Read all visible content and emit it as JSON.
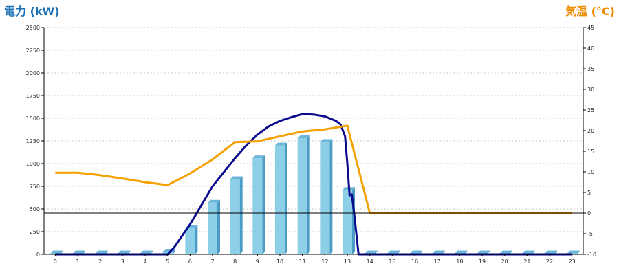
{
  "chart_data": {
    "type": "bar+line",
    "left_axis_label": "電力 (kW)",
    "right_axis_label": "気温 (°C)",
    "x": [
      0,
      1,
      2,
      3,
      4,
      5,
      6,
      7,
      8,
      9,
      10,
      11,
      12,
      13,
      14,
      15,
      16,
      17,
      18,
      19,
      20,
      21,
      22,
      23
    ],
    "left_ylim": [
      0,
      2500
    ],
    "left_ticks": [
      0,
      250,
      500,
      750,
      1000,
      1250,
      1500,
      1750,
      2000,
      2250,
      2500
    ],
    "right_ylim": [
      -10,
      45
    ],
    "right_ticks": [
      -10,
      -5,
      0,
      5,
      10,
      15,
      20,
      25,
      30,
      35,
      40,
      45
    ],
    "grid": true,
    "series": [
      {
        "kind": "bar",
        "axis": "left",
        "values": [
          0,
          0,
          0,
          0,
          0,
          30,
          290,
          570,
          830,
          1060,
          1200,
          1280,
          1240,
          710,
          0,
          0,
          0,
          0,
          0,
          0,
          0,
          0,
          0,
          0
        ]
      },
      {
        "kind": "line",
        "axis": "left",
        "x": [
          0,
          1,
          2,
          3,
          4,
          5,
          5.3,
          6,
          7,
          8,
          8.5,
          9,
          9.5,
          10,
          10.5,
          11,
          11.5,
          12,
          12.5,
          12.7,
          12.9,
          13,
          13.1,
          13.2,
          13.3,
          13.5,
          14,
          15,
          16,
          17,
          18,
          19,
          20,
          21,
          22,
          23
        ],
        "values": [
          0,
          0,
          0,
          0,
          0,
          0,
          80,
          330,
          750,
          1060,
          1200,
          1320,
          1410,
          1470,
          1510,
          1545,
          1540,
          1520,
          1470,
          1430,
          1300,
          1000,
          650,
          660,
          460,
          0,
          0,
          0,
          0,
          0,
          0,
          0,
          0,
          0,
          0,
          0
        ]
      },
      {
        "kind": "line",
        "axis": "right",
        "values": [
          9.8,
          9.8,
          9.2,
          8.4,
          7.5,
          6.8,
          9.6,
          13.0,
          17.2,
          17.4,
          18.6,
          19.8,
          20.3,
          21.2,
          0,
          0,
          0,
          0,
          0,
          0,
          0,
          0,
          0,
          0
        ]
      }
    ],
    "colors": {
      "bar": "#8ecfe8",
      "bar_dark": "#4a9cc4",
      "power_line": "#0a0a8c",
      "temp_line": "#f5a000",
      "left_label": "#1a6fb5",
      "right_label": "#f08a00"
    }
  }
}
